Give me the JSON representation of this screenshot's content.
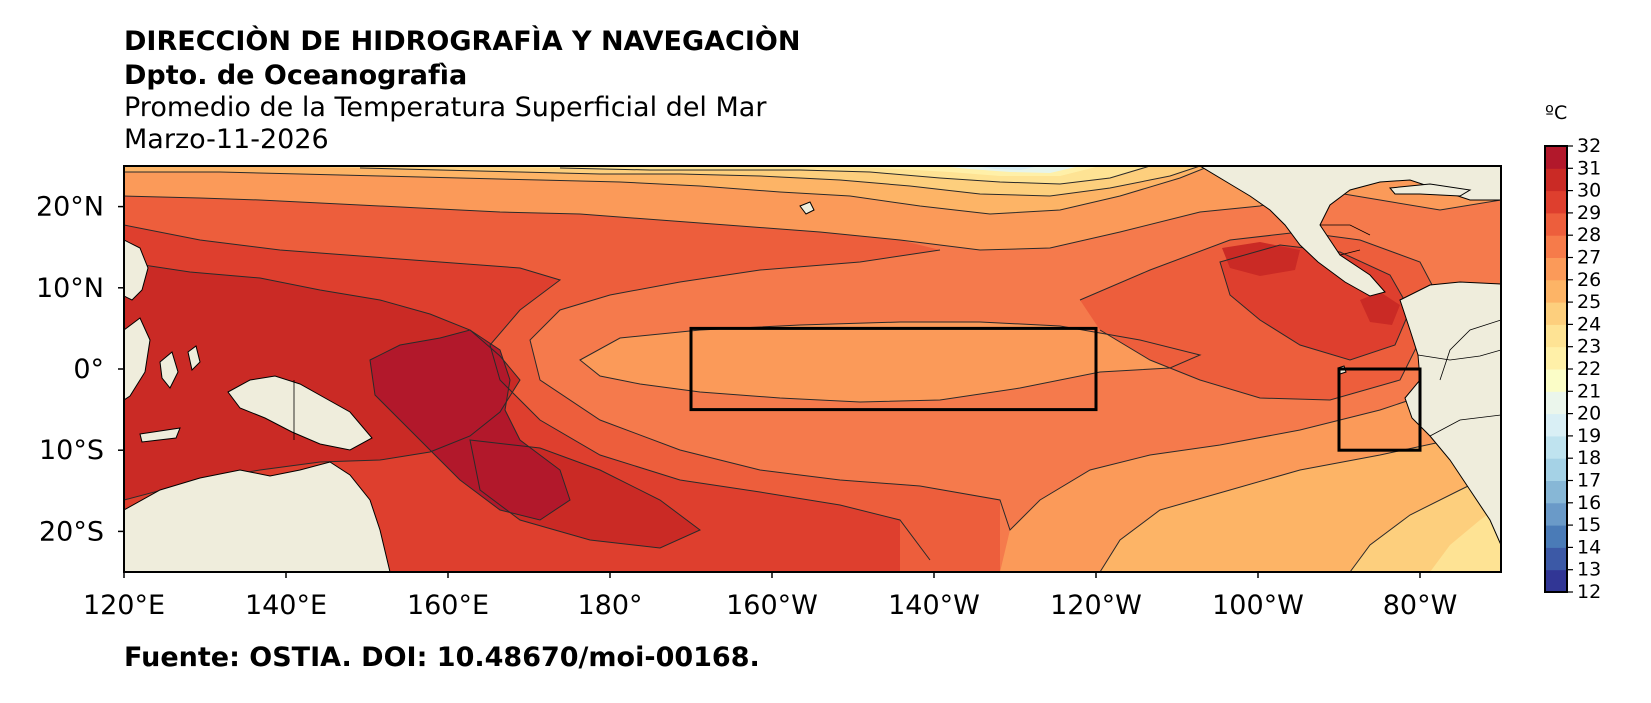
{
  "header": {
    "line1": "DIRECCIÒN DE HIDROGRAFÌA Y NAVEGACIÒN",
    "line2": "Dpto. de Oceanografìa",
    "line3": "Promedio de la Temperatura Superficial del Mar",
    "line4": "Marzo-11-2026"
  },
  "footer": {
    "source": "Fuente: OSTIA. DOI: 10.48670/moi-00168."
  },
  "map": {
    "lon_range": [
      120,
      -70
    ],
    "lat_range": [
      -25,
      25
    ],
    "lon_ticks": [
      "120°E",
      "140°E",
      "160°E",
      "180°",
      "160°W",
      "140°W",
      "120°W",
      "100°W",
      "80°W"
    ],
    "lat_ticks": [
      "20°N",
      "10°N",
      "0°",
      "10°S",
      "20°S"
    ],
    "boxes": [
      {
        "lon": [
          -170,
          -120
        ],
        "lat": [
          -5,
          5
        ]
      },
      {
        "lon": [
          -90,
          -80
        ],
        "lat": [
          -10,
          0
        ]
      }
    ],
    "land_color": "#efeddc"
  },
  "colorbar": {
    "unit": "ºC",
    "ticks": [
      "12",
      "13",
      "14",
      "15",
      "16",
      "17",
      "18",
      "19",
      "20",
      "21",
      "22",
      "23",
      "24",
      "25",
      "26",
      "27",
      "28",
      "29",
      "30",
      "31",
      "32"
    ],
    "colors": [
      "#313695",
      "#3c59a6",
      "#4a7bb7",
      "#6a9ac8",
      "#87b7d6",
      "#a5d2e6",
      "#bfe3ef",
      "#d9eff5",
      "#ebf6ec",
      "#fbfdc7",
      "#fff0a8",
      "#fee394",
      "#fdcf7d",
      "#fdb466",
      "#fb9a59",
      "#f67b4a",
      "#ed5e3c",
      "#de3f2e",
      "#ca2a25",
      "#b2182b"
    ]
  }
}
